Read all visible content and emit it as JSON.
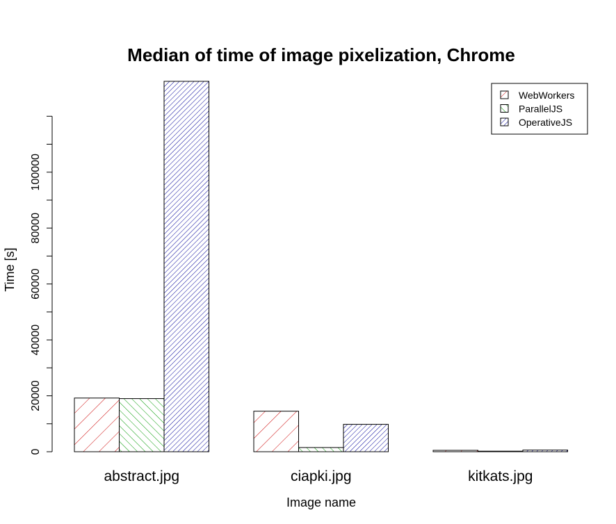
{
  "chart_data": {
    "type": "bar",
    "title": "Median of time of image pixelization, Chrome",
    "xlabel": "Image name",
    "ylabel": "Time [s]",
    "categories": [
      "abstract.jpg",
      "ciapki.jpg",
      "kitkats.jpg"
    ],
    "series": [
      {
        "name": "WebWorkers",
        "values": [
          19200,
          14500,
          500
        ],
        "color": "#cc0000"
      },
      {
        "name": "ParallelJS",
        "values": [
          19000,
          1500,
          200
        ],
        "color": "#009900"
      },
      {
        "name": "OperativeJS",
        "values": [
          132500,
          9800,
          600
        ],
        "color": "#000099"
      }
    ],
    "yticks": [
      0,
      20000,
      40000,
      60000,
      80000,
      100000
    ],
    "ylim": [
      0,
      132500
    ],
    "grid": false,
    "legend_position": "top-right",
    "fill_pattern": "hatched"
  }
}
